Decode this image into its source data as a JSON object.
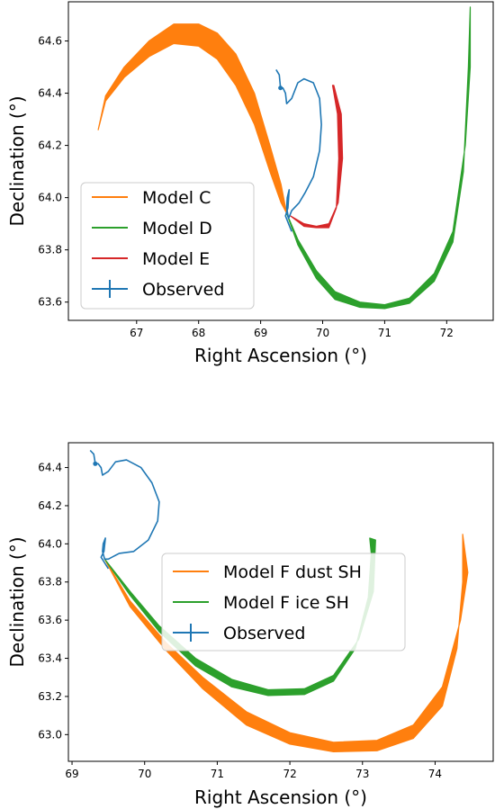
{
  "chart_data": [
    {
      "type": "line",
      "xlabel": "Right Ascension (°)",
      "ylabel": "Declination (°)",
      "xlim": [
        65.9,
        72.75
      ],
      "ylim": [
        63.53,
        64.75
      ],
      "xticks": [
        67,
        68,
        69,
        70,
        71,
        72
      ],
      "yticks": [
        63.6,
        63.8,
        64.0,
        64.2,
        64.4,
        64.6
      ],
      "xtick_labels": [
        "67",
        "68",
        "69",
        "70",
        "71",
        "72"
      ],
      "ytick_labels": [
        "63.6",
        "63.8",
        "64.0",
        "64.2",
        "64.4",
        "64.6"
      ],
      "grid": false,
      "legend_position": "lower-left",
      "series": [
        {
          "name": "Model C",
          "color": "#ff7f0e",
          "kind": "band",
          "upper": [
            [
              66.38,
              64.26
            ],
            [
              66.5,
              64.39
            ],
            [
              66.8,
              64.5
            ],
            [
              67.2,
              64.6
            ],
            [
              67.6,
              64.665
            ],
            [
              68.0,
              64.665
            ],
            [
              68.3,
              64.63
            ],
            [
              68.6,
              64.55
            ],
            [
              68.9,
              64.4
            ],
            [
              69.15,
              64.2
            ],
            [
              69.33,
              64.05
            ],
            [
              69.42,
              63.94
            ]
          ],
          "lower": [
            [
              66.38,
              64.26
            ],
            [
              66.5,
              64.37
            ],
            [
              66.8,
              64.46
            ],
            [
              67.2,
              64.54
            ],
            [
              67.6,
              64.59
            ],
            [
              68.0,
              64.58
            ],
            [
              68.3,
              64.53
            ],
            [
              68.6,
              64.43
            ],
            [
              68.9,
              64.28
            ],
            [
              69.15,
              64.1
            ],
            [
              69.33,
              63.98
            ],
            [
              69.42,
              63.94
            ]
          ]
        },
        {
          "name": "Model D",
          "color": "#2ca02c",
          "kind": "band",
          "upper": [
            [
              69.42,
              63.94
            ],
            [
              69.6,
              63.84
            ],
            [
              69.9,
              63.72
            ],
            [
              70.2,
              63.64
            ],
            [
              70.6,
              63.6
            ],
            [
              71.0,
              63.59
            ],
            [
              71.4,
              63.615
            ],
            [
              71.8,
              63.71
            ],
            [
              72.1,
              63.87
            ],
            [
              72.3,
              64.2
            ],
            [
              72.38,
              64.5
            ],
            [
              72.38,
              64.73
            ]
          ],
          "lower": [
            [
              69.42,
              63.94
            ],
            [
              69.6,
              63.82
            ],
            [
              69.9,
              63.69
            ],
            [
              70.2,
              63.61
            ],
            [
              70.6,
              63.58
            ],
            [
              71.0,
              63.575
            ],
            [
              71.4,
              63.595
            ],
            [
              71.8,
              63.68
            ],
            [
              72.1,
              63.83
            ],
            [
              72.27,
              64.1
            ],
            [
              72.35,
              64.5
            ],
            [
              72.38,
              64.73
            ]
          ]
        },
        {
          "name": "Model E",
          "color": "#d62728",
          "kind": "band",
          "upper": [
            [
              69.48,
              63.93
            ],
            [
              69.7,
              63.9
            ],
            [
              69.9,
              63.89
            ],
            [
              70.1,
              63.9
            ],
            [
              70.25,
              63.98
            ],
            [
              70.32,
              64.15
            ],
            [
              70.3,
              64.32
            ],
            [
              70.18,
              64.43
            ]
          ],
          "lower": [
            [
              69.48,
              63.93
            ],
            [
              69.7,
              63.89
            ],
            [
              69.9,
              63.885
            ],
            [
              70.1,
              63.885
            ],
            [
              70.22,
              63.96
            ],
            [
              70.26,
              64.15
            ],
            [
              70.24,
              64.32
            ],
            [
              70.16,
              64.43
            ]
          ]
        },
        {
          "name": "Observed",
          "color": "#1f77b4",
          "kind": "line",
          "points": [
            [
              69.25,
              64.49
            ],
            [
              69.3,
              64.47
            ],
            [
              69.32,
              64.42
            ],
            [
              69.36,
              64.42
            ],
            [
              69.4,
              64.4
            ],
            [
              69.42,
              64.36
            ],
            [
              69.5,
              64.38
            ],
            [
              69.6,
              64.44
            ],
            [
              69.7,
              64.455
            ],
            [
              69.85,
              64.44
            ],
            [
              69.95,
              64.38
            ],
            [
              69.98,
              64.28
            ],
            [
              69.95,
              64.18
            ],
            [
              69.85,
              64.08
            ],
            [
              69.72,
              64.02
            ],
            [
              69.62,
              63.98
            ],
            [
              69.5,
              63.95
            ],
            [
              69.45,
              63.92
            ],
            [
              69.42,
              63.96
            ],
            [
              69.43,
              64.0
            ],
            [
              69.46,
              64.03
            ],
            [
              69.44,
              63.96
            ],
            [
              69.4,
              63.93
            ],
            [
              69.45,
              63.9
            ],
            [
              69.5,
              63.87
            ]
          ]
        }
      ]
    },
    {
      "type": "line",
      "xlabel": "Right Ascension (°)",
      "ylabel": "Declination (°)",
      "xlim": [
        68.95,
        74.8
      ],
      "ylim": [
        62.86,
        64.53
      ],
      "xticks": [
        69,
        70,
        71,
        72,
        73,
        74
      ],
      "yticks": [
        63.0,
        63.2,
        63.4,
        63.6,
        63.8,
        64.0,
        64.2,
        64.4
      ],
      "xtick_labels": [
        "69",
        "70",
        "71",
        "72",
        "73",
        "74"
      ],
      "ytick_labels": [
        "63.0",
        "63.2",
        "63.4",
        "63.6",
        "63.8",
        "64.0",
        "64.2",
        "64.4"
      ],
      "grid": false,
      "legend_position": "center-right",
      "series": [
        {
          "name": "Model F dust SH",
          "color": "#ff7f0e",
          "kind": "band",
          "upper": [
            [
              69.45,
              63.92
            ],
            [
              69.8,
              63.7
            ],
            [
              70.3,
              63.48
            ],
            [
              70.8,
              63.3
            ],
            [
              71.4,
              63.12
            ],
            [
              72.0,
              63.01
            ],
            [
              72.6,
              62.96
            ],
            [
              73.2,
              62.97
            ],
            [
              73.7,
              63.05
            ],
            [
              74.1,
              63.25
            ],
            [
              74.35,
              63.6
            ],
            [
              74.45,
              63.85
            ],
            [
              74.38,
              64.05
            ]
          ],
          "lower": [
            [
              69.45,
              63.92
            ],
            [
              69.8,
              63.67
            ],
            [
              70.3,
              63.44
            ],
            [
              70.8,
              63.24
            ],
            [
              71.4,
              63.05
            ],
            [
              72.0,
              62.95
            ],
            [
              72.6,
              62.91
            ],
            [
              73.2,
              62.915
            ],
            [
              73.7,
              62.98
            ],
            [
              74.1,
              63.15
            ],
            [
              74.3,
              63.45
            ],
            [
              74.38,
              63.8
            ],
            [
              74.38,
              64.05
            ]
          ]
        },
        {
          "name": "Model F ice SH",
          "color": "#2ca02c",
          "kind": "band",
          "upper": [
            [
              69.45,
              63.92
            ],
            [
              69.8,
              63.75
            ],
            [
              70.2,
              63.57
            ],
            [
              70.7,
              63.4
            ],
            [
              71.2,
              63.29
            ],
            [
              71.7,
              63.235
            ],
            [
              72.2,
              63.24
            ],
            [
              72.6,
              63.31
            ],
            [
              72.95,
              63.5
            ],
            [
              73.15,
              63.75
            ],
            [
              73.18,
              64.02
            ],
            [
              73.1,
              64.03
            ]
          ],
          "lower": [
            [
              69.45,
              63.92
            ],
            [
              69.8,
              63.73
            ],
            [
              70.2,
              63.54
            ],
            [
              70.7,
              63.36
            ],
            [
              71.2,
              63.25
            ],
            [
              71.7,
              63.205
            ],
            [
              72.2,
              63.21
            ],
            [
              72.6,
              63.28
            ],
            [
              72.9,
              63.45
            ],
            [
              73.08,
              63.72
            ],
            [
              73.12,
              63.95
            ],
            [
              73.1,
              64.03
            ]
          ]
        },
        {
          "name": "Observed",
          "color": "#1f77b4",
          "kind": "line",
          "points": [
            [
              69.25,
              64.49
            ],
            [
              69.3,
              64.47
            ],
            [
              69.32,
              64.42
            ],
            [
              69.36,
              64.42
            ],
            [
              69.4,
              64.4
            ],
            [
              69.42,
              64.36
            ],
            [
              69.5,
              64.38
            ],
            [
              69.6,
              64.43
            ],
            [
              69.75,
              64.44
            ],
            [
              69.95,
              64.4
            ],
            [
              70.1,
              64.32
            ],
            [
              70.2,
              64.22
            ],
            [
              70.18,
              64.12
            ],
            [
              70.05,
              64.02
            ],
            [
              69.85,
              63.96
            ],
            [
              69.65,
              63.95
            ],
            [
              69.5,
              63.92
            ],
            [
              69.45,
              63.92
            ],
            [
              69.42,
              63.96
            ],
            [
              69.43,
              64.0
            ],
            [
              69.46,
              64.03
            ],
            [
              69.44,
              63.96
            ],
            [
              69.4,
              63.93
            ],
            [
              69.45,
              63.9
            ],
            [
              69.5,
              63.87
            ]
          ]
        }
      ]
    }
  ]
}
